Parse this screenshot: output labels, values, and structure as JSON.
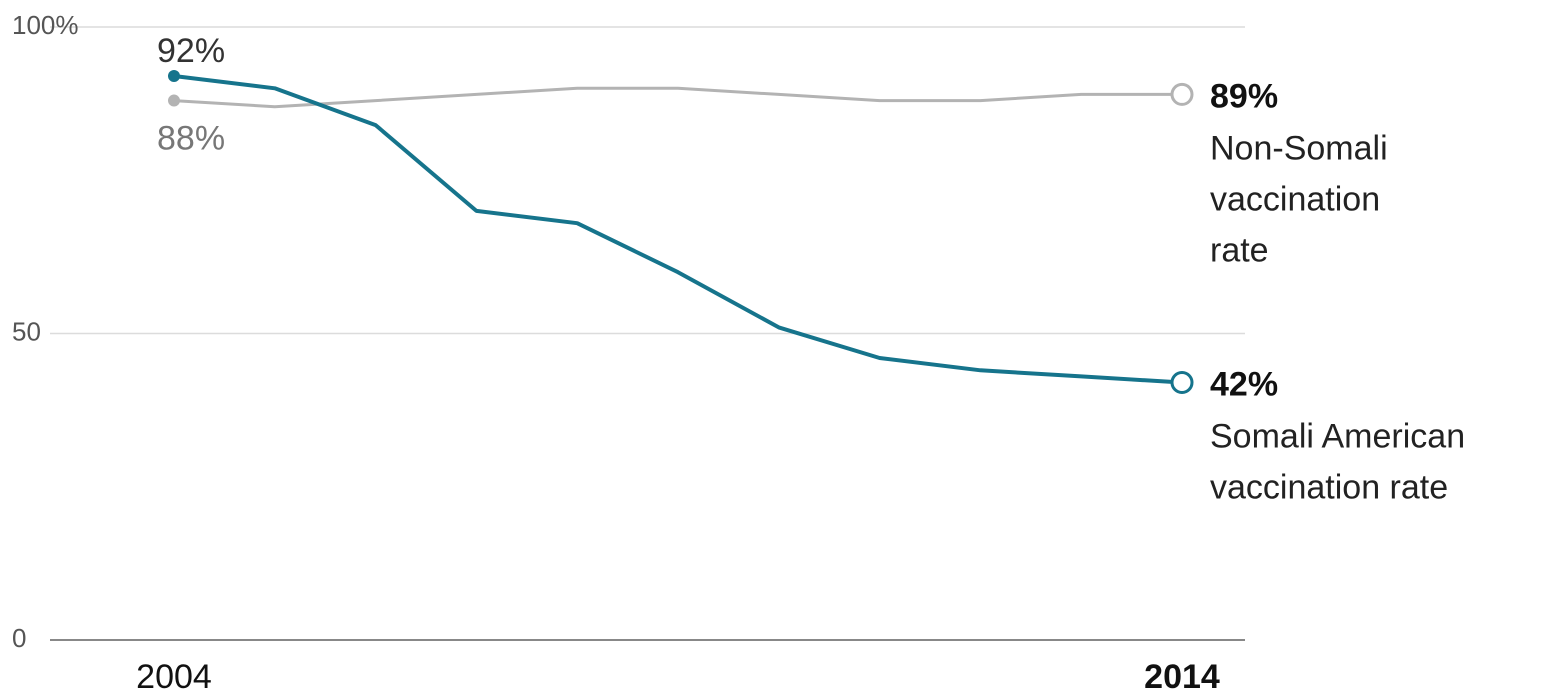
{
  "chart_data": {
    "type": "line",
    "title": "",
    "xlabel": "",
    "ylabel": "",
    "x": [
      2004,
      2005,
      2006,
      2007,
      2008,
      2009,
      2010,
      2011,
      2012,
      2013,
      2014
    ],
    "xlim": [
      2004,
      2014
    ],
    "ylim": [
      0,
      100
    ],
    "y_ticks": [
      {
        "value": 100,
        "label": "100%"
      },
      {
        "value": 50,
        "label": "50"
      },
      {
        "value": 0,
        "label": "0"
      }
    ],
    "x_tick_labels": [
      {
        "value": 2004,
        "label": "2004",
        "bold": false
      },
      {
        "value": 2014,
        "label": "2014",
        "bold": true
      }
    ],
    "grid": true,
    "series": [
      {
        "key": "somali",
        "color": "#16748c",
        "values": [
          92,
          90,
          84,
          70,
          68,
          60,
          51,
          46,
          44,
          43,
          42
        ],
        "start_label": "92%",
        "end_value_label": "42%",
        "end_text_lines": [
          "Somali American",
          "vaccination rate"
        ]
      },
      {
        "key": "non-somali",
        "color": "#b3b3b3",
        "values": [
          88,
          87,
          88,
          89,
          90,
          90,
          89,
          88,
          88,
          89,
          89
        ],
        "start_label": "88%",
        "end_value_label": "89%",
        "end_text_lines": [
          "Non-Somali",
          "vaccination",
          "rate"
        ]
      }
    ]
  }
}
